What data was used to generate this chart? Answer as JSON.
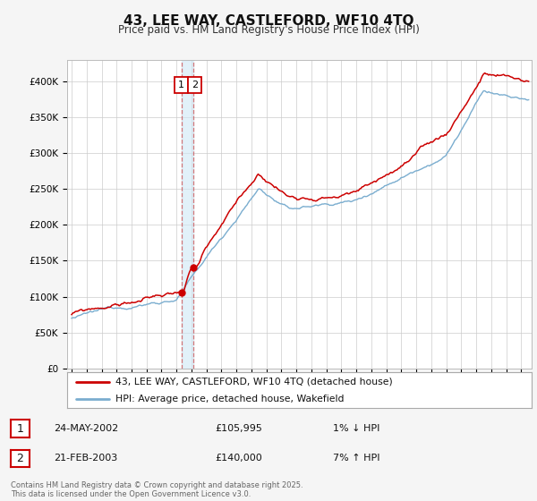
{
  "title": "43, LEE WAY, CASTLEFORD, WF10 4TQ",
  "subtitle": "Price paid vs. HM Land Registry's House Price Index (HPI)",
  "legend_line1": "43, LEE WAY, CASTLEFORD, WF10 4TQ (detached house)",
  "legend_line2": "HPI: Average price, detached house, Wakefield",
  "line_color_red": "#cc0000",
  "line_color_blue": "#7aadcf",
  "annotation1_label": "1",
  "annotation1_date": "24-MAY-2002",
  "annotation1_price": "£105,995",
  "annotation1_hpi": "1% ↓ HPI",
  "annotation2_label": "2",
  "annotation2_date": "21-FEB-2003",
  "annotation2_price": "£140,000",
  "annotation2_hpi": "7% ↑ HPI",
  "footer": "Contains HM Land Registry data © Crown copyright and database right 2025.\nThis data is licensed under the Open Government Licence v3.0.",
  "ylim": [
    0,
    420000
  ],
  "yticks": [
    0,
    50000,
    100000,
    150000,
    200000,
    250000,
    300000,
    350000,
    400000
  ],
  "background_color": "#f5f5f5",
  "plot_bg_color": "#ffffff",
  "grid_color": "#cccccc",
  "sale1_t": 2002.3753,
  "sale1_p": 105995,
  "sale2_t": 2003.125,
  "sale2_p": 140000,
  "start_year": 1995.0,
  "end_year": 2025.5
}
